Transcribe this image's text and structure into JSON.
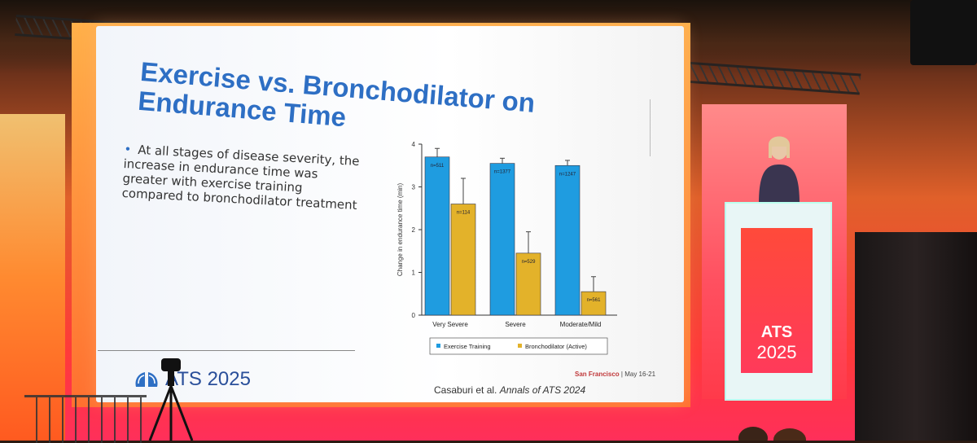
{
  "slide": {
    "title": "Exercise vs. Bronchodilator on Endurance Time",
    "bullet": "At all stages of disease severity, the increase in endurance time was greater with exercise training compared to bronchodilator treatment",
    "logo_brand": "ATS 2025",
    "location": "San Francisco",
    "dates": "May 16-21",
    "citation_authors": "Casaburi et al.",
    "citation_journal": "Annals of ATS 2024"
  },
  "podium": {
    "brand": "ATS",
    "year": "2025"
  },
  "chart_data": {
    "type": "bar",
    "ylabel": "Change in endurance time (min)",
    "ylim": [
      0,
      4
    ],
    "yticks": [
      "0",
      "1",
      "2",
      "3",
      "4"
    ],
    "categories": [
      "Very Severe",
      "Severe",
      "Moderate/Mild"
    ],
    "series": [
      {
        "name": "Exercise Training",
        "color": "#1f9ce0",
        "values": [
          3.7,
          3.55,
          3.5
        ],
        "errors": [
          0.2,
          0.12,
          0.12
        ],
        "n_labels": [
          "n=511",
          "n=1377",
          "n=1247"
        ]
      },
      {
        "name": "Bronchodilator (Active)",
        "color": "#e3b22a",
        "values": [
          2.6,
          1.45,
          0.55
        ],
        "errors": [
          0.6,
          0.5,
          0.35
        ],
        "n_labels": [
          "n=114",
          "n=529",
          "n=561"
        ]
      }
    ]
  },
  "colors": {
    "title_blue": "#2e6fc4",
    "ats_red": "#c0393b"
  }
}
